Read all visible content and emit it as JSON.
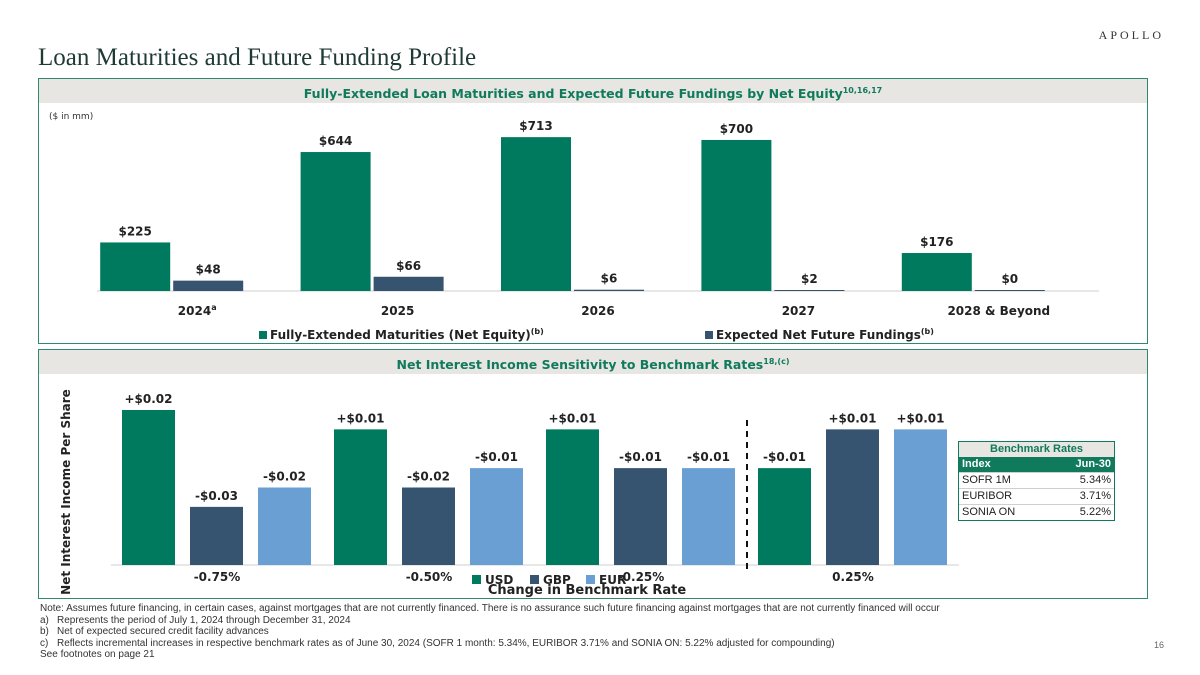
{
  "brand": "APOLLO",
  "page_title": "Loan Maturities and Future Funding Profile",
  "colors": {
    "usd": "#007a5e",
    "gbp": "#36546f",
    "eur": "#6a9fd4",
    "accent": "#0f7a5c"
  },
  "chart_data": [
    {
      "type": "bar",
      "title": "Fully-Extended Loan Maturities and Expected Future Fundings by Net Equity",
      "title_sup": "10,16,17",
      "unit_note": "($ in mm)",
      "categories": [
        "2024",
        "2025",
        "2026",
        "2027",
        "2028 & Beyond"
      ],
      "category_sup": [
        "a",
        "",
        "",
        "",
        ""
      ],
      "ylim": [
        0,
        760
      ],
      "series": [
        {
          "name": "Fully-Extended Maturities (Net Equity)",
          "name_sup": "(b)",
          "color": "#007a5e",
          "values": [
            225,
            644,
            713,
            700,
            176
          ],
          "labels": [
            "$225",
            "$644",
            "$713",
            "$700",
            "$176"
          ]
        },
        {
          "name": "Expected Net Future Fundings",
          "name_sup": "(b)",
          "color": "#36546f",
          "values": [
            48,
            66,
            6,
            2,
            0
          ],
          "labels": [
            "$48",
            "$66",
            "$6",
            "$2",
            "$0"
          ]
        }
      ]
    },
    {
      "type": "bar",
      "title": "Net Interest Income Sensitivity to Benchmark Rates",
      "title_sup": "18,(c)",
      "ylabel": "Net Interest Income Per Share",
      "xlabel": "Change in Benchmark Rate",
      "categories": [
        "-0.75%",
        "-0.50%",
        "-0.25%",
        "0.25%"
      ],
      "ylim": [
        -0.06,
        0.02
      ],
      "series": [
        {
          "name": "USD",
          "color": "#007a5e",
          "values": [
            0.02,
            0.01,
            0.01,
            -0.01
          ],
          "labels": [
            "+$0.02",
            "+$0.01",
            "+$0.01",
            "-$0.01"
          ]
        },
        {
          "name": "GBP",
          "color": "#36546f",
          "values": [
            -0.03,
            -0.02,
            -0.01,
            0.01
          ],
          "labels": [
            "-$0.03",
            "-$0.02",
            "-$0.01",
            "+$0.01"
          ]
        },
        {
          "name": "EUR",
          "color": "#6a9fd4",
          "values": [
            -0.02,
            -0.01,
            -0.01,
            0.01
          ],
          "labels": [
            "-$0.02",
            "-$0.01",
            "-$0.01",
            "+$0.01"
          ]
        }
      ]
    }
  ],
  "benchmark": {
    "title": "Benchmark Rates",
    "col_index": "Index",
    "col_date": "Jun-30",
    "rows": [
      {
        "index": "SOFR 1M",
        "rate": "5.34%"
      },
      {
        "index": "EURIBOR",
        "rate": "3.71%"
      },
      {
        "index": "SONIA ON",
        "rate": "5.22%"
      }
    ]
  },
  "notes": {
    "main": "Note: Assumes future financing, in certain cases, against mortgages that are not currently financed. There is no assurance such future financing against mortgages that are not currently financed will occur",
    "a_idx": "a)",
    "a": "Represents the period of July 1, 2024 through December 31, 2024",
    "b_idx": "b)",
    "b": "Net of expected secured credit facility advances",
    "c_idx": "c)",
    "c": "Reflects incremental increases in respective benchmark rates as of June 30, 2024 (SOFR 1 month: 5.34%, EURIBOR 3.71% and SONIA ON: 5.22% adjusted for compounding)",
    "see": "See footnotes on page 21"
  },
  "page_number": "16"
}
